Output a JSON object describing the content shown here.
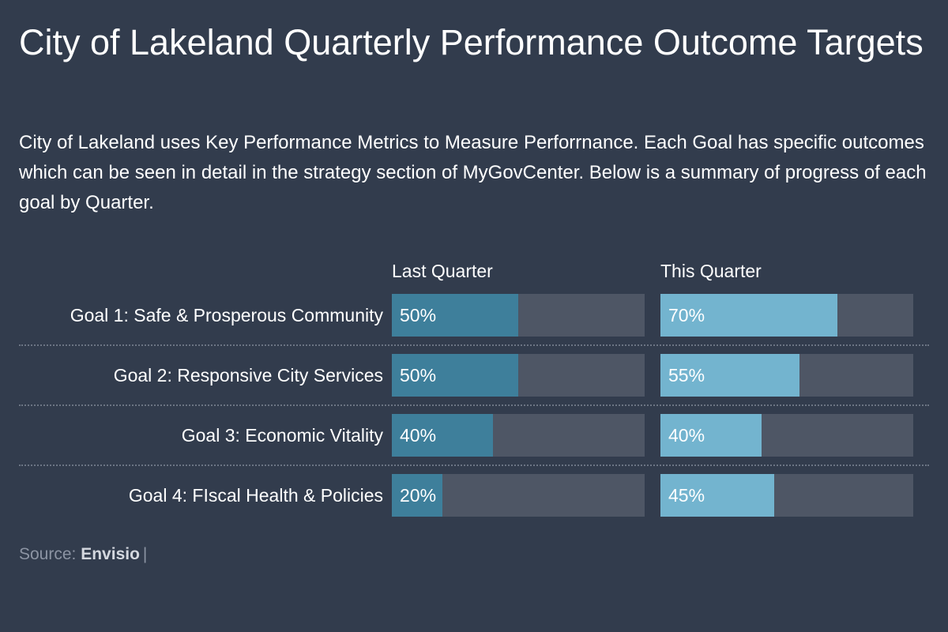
{
  "header": {
    "title": "City of Lakeland Quarterly Performance Outcome Targets",
    "description": "City of Lakeland uses Key Performance Metrics to Measure Perforrnance. Each Goal has specific outcomes which can be seen in detail in the strategy section of MyGovCenter. Below is a summary of progress of each goal by Quarter."
  },
  "colors": {
    "background": "#323c4d",
    "last_quarter": "#3e7f9b",
    "this_quarter": "#73b4cf",
    "track": "#4e5665"
  },
  "chart_data": {
    "type": "bar",
    "orientation": "horizontal",
    "categories": [
      "Goal 1: Safe & Prosperous Community",
      "Goal 2: Responsive City Services",
      "Goal 3: Economic Vitality",
      "Goal 4: FIscal Health & Policies"
    ],
    "series": [
      {
        "name": "Last Quarter",
        "values": [
          50,
          50,
          40,
          20
        ],
        "labels": [
          "50%",
          "50%",
          "40%",
          "20%"
        ]
      },
      {
        "name": "This Quarter",
        "values": [
          70,
          55,
          40,
          45
        ],
        "labels": [
          "70%",
          "55%",
          "40%",
          "45%"
        ]
      }
    ],
    "xlim": [
      0,
      100
    ],
    "unit": "%"
  },
  "footer": {
    "source_label": "Source:",
    "source_name": "Envisio",
    "separator": "|"
  }
}
